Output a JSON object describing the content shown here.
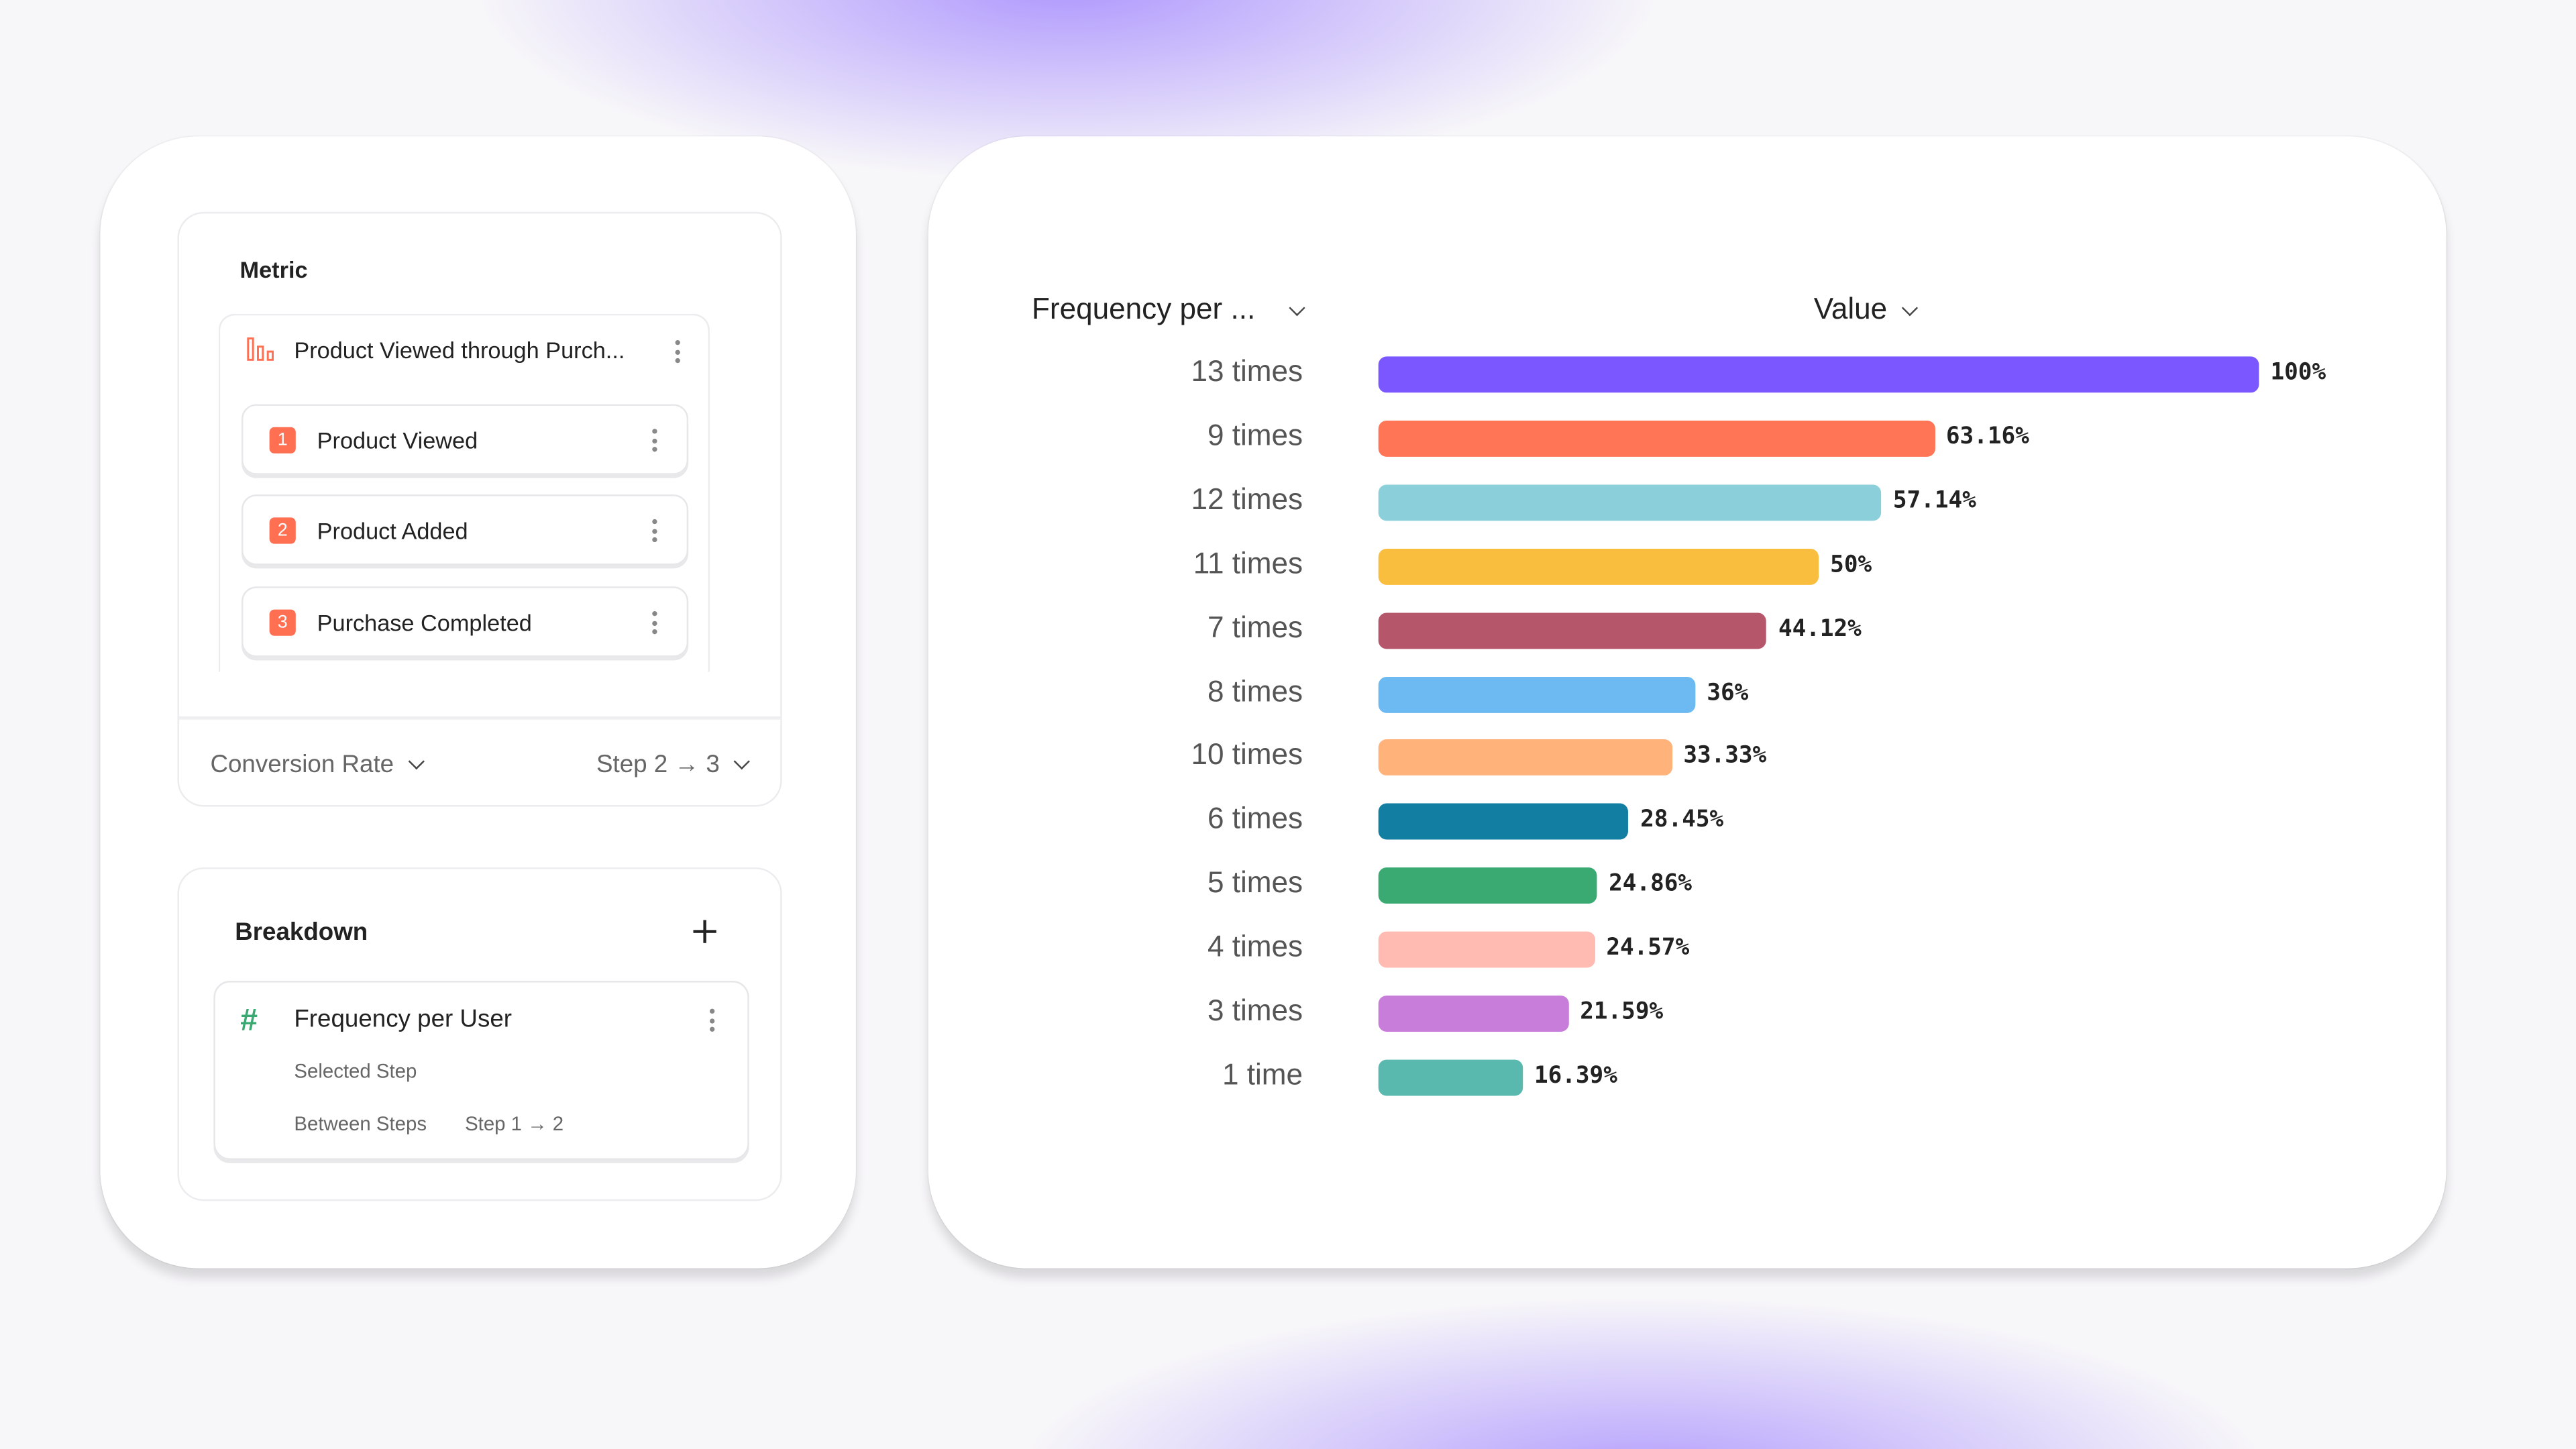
{
  "metric": {
    "title": "Metric",
    "funnel_name": "Product Viewed through Purch...",
    "steps": [
      {
        "num": "1",
        "label": "Product Viewed"
      },
      {
        "num": "2",
        "label": "Product Added"
      },
      {
        "num": "3",
        "label": "Purchase Completed"
      }
    ],
    "measure": "Conversion Rate",
    "step_range": "Step 2 → 3"
  },
  "breakdown": {
    "title": "Breakdown",
    "item": "Frequency per User",
    "selected_step": "Selected Step",
    "between_steps": "Between Steps",
    "between_value": "Step 1 → 2"
  },
  "chart_header": {
    "group_by": "Frequency per ...",
    "value": "Value"
  },
  "chart_data": {
    "type": "bar",
    "orientation": "horizontal",
    "categories": [
      "13 times",
      "9 times",
      "12 times",
      "11 times",
      "7 times",
      "8 times",
      "10 times",
      "6 times",
      "5 times",
      "4 times",
      "3 times",
      "1 time"
    ],
    "values": [
      100,
      63.16,
      57.14,
      50,
      44.12,
      36,
      33.33,
      28.45,
      24.86,
      24.57,
      21.59,
      16.39
    ],
    "labels": [
      "100%",
      "63.16%",
      "57.14%",
      "50%",
      "44.12%",
      "36%",
      "33.33%",
      "28.45%",
      "24.86%",
      "24.57%",
      "21.59%",
      "16.39%"
    ],
    "colors": [
      "#7b57ff",
      "#ff7556",
      "#8acfda",
      "#f9be3e",
      "#b5566b",
      "#6dbaf3",
      "#ffb27a",
      "#127ea2",
      "#3aaa72",
      "#ffbab2",
      "#c97ddb",
      "#5ab9ae"
    ],
    "xlim": [
      0,
      100
    ],
    "grid": false
  }
}
